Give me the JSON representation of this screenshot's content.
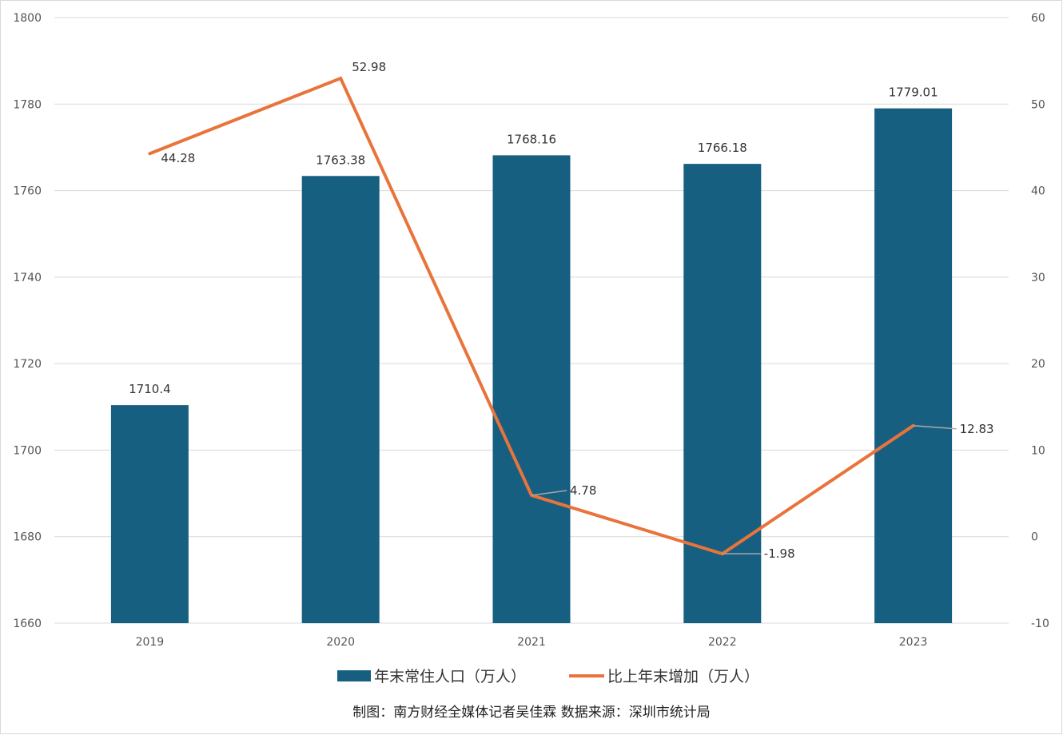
{
  "chart_data": {
    "type": "bar",
    "categories": [
      "2019",
      "2020",
      "2021",
      "2022",
      "2023"
    ],
    "series": [
      {
        "name": "年末常住人口（万人）",
        "type": "bar",
        "axis": "left",
        "color": "#175f80",
        "values": [
          1710.4,
          1763.38,
          1768.16,
          1766.18,
          1779.01
        ],
        "labels": [
          "1710.4",
          "1763.38",
          "1768.16",
          "1766.18",
          "1779.01"
        ]
      },
      {
        "name": "比上年末增加（万人）",
        "type": "line",
        "axis": "right",
        "color": "#e8743b",
        "values": [
          44.28,
          52.98,
          4.78,
          -1.98,
          12.83
        ],
        "labels": [
          "44.28",
          "52.98",
          "4.78",
          "-1.98",
          "12.83"
        ]
      }
    ],
    "y_left": {
      "range": [
        1660,
        1800
      ],
      "ticks": [
        "1660",
        "1680",
        "1700",
        "1720",
        "1740",
        "1760",
        "1780",
        "1800"
      ]
    },
    "y_right": {
      "range": [
        -10,
        60
      ],
      "ticks": [
        "-10",
        "0",
        "10",
        "20",
        "30",
        "40",
        "50",
        "60"
      ]
    },
    "grid": true,
    "legend": "bottom-center",
    "credit": "制图：南方财经全媒体记者吴佳霖 数据来源：深圳市统计局"
  }
}
